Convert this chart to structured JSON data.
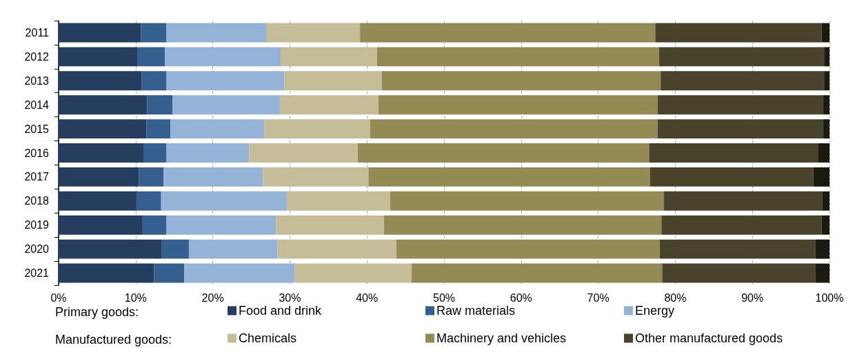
{
  "chart_data": {
    "type": "bar",
    "orientation": "horizontal",
    "stacked": true,
    "categories": [
      "2011",
      "2012",
      "2013",
      "2014",
      "2015",
      "2016",
      "2017",
      "2018",
      "2019",
      "2020",
      "2021"
    ],
    "series": [
      {
        "name": "Food and drink",
        "color": "#253d5e",
        "values": [
          10.7,
          10.2,
          10.8,
          11.5,
          11.4,
          11.0,
          10.4,
          10.1,
          10.9,
          13.4,
          12.4
        ]
      },
      {
        "name": "Raw materials",
        "color": "#355f8f",
        "values": [
          3.3,
          3.6,
          3.2,
          3.3,
          3.1,
          3.0,
          3.2,
          3.2,
          3.1,
          3.5,
          3.9
        ]
      },
      {
        "name": "Energy",
        "color": "#95b3d7",
        "values": [
          13.0,
          15.0,
          15.3,
          13.9,
          12.2,
          10.7,
          12.9,
          16.3,
          14.2,
          11.5,
          14.3
        ]
      },
      {
        "name": "Chemicals",
        "color": "#c4bd97",
        "values": [
          12.1,
          12.5,
          12.6,
          12.8,
          13.7,
          14.1,
          13.7,
          13.4,
          14.0,
          15.4,
          15.2
        ]
      },
      {
        "name": "Machinery and vehicles",
        "color": "#948a54",
        "values": [
          38.3,
          36.6,
          36.2,
          36.2,
          37.3,
          37.8,
          36.5,
          35.5,
          36.0,
          34.2,
          32.5
        ]
      },
      {
        "name": "Other manufactured goods",
        "color": "#4a432b",
        "values": [
          21.6,
          21.4,
          21.2,
          21.5,
          21.5,
          21.9,
          21.2,
          20.6,
          20.8,
          20.2,
          19.9
        ]
      },
      {
        "color": "#1c1a10",
        "values": [
          1.0,
          0.7,
          0.7,
          0.8,
          0.8,
          1.5,
          2.1,
          0.9,
          1.0,
          1.8,
          1.8
        ]
      }
    ],
    "xlim": [
      0,
      100
    ],
    "xticks": [
      {
        "value": 0,
        "label": "0%"
      },
      {
        "value": 10,
        "label": "10%"
      },
      {
        "value": 20,
        "label": "20%"
      },
      {
        "value": 30,
        "label": "30%"
      },
      {
        "value": 40,
        "label": "40%"
      },
      {
        "value": 50,
        "label": "50%"
      },
      {
        "value": 60,
        "label": "60%"
      },
      {
        "value": 70,
        "label": "70%"
      },
      {
        "value": 80,
        "label": "80%"
      },
      {
        "value": 90,
        "label": "90%"
      },
      {
        "value": 100,
        "label": "100%"
      }
    ],
    "grid": "x",
    "legend": "bottom",
    "annotations": [
      "Primary goods:",
      "Manufactured goods:"
    ]
  }
}
